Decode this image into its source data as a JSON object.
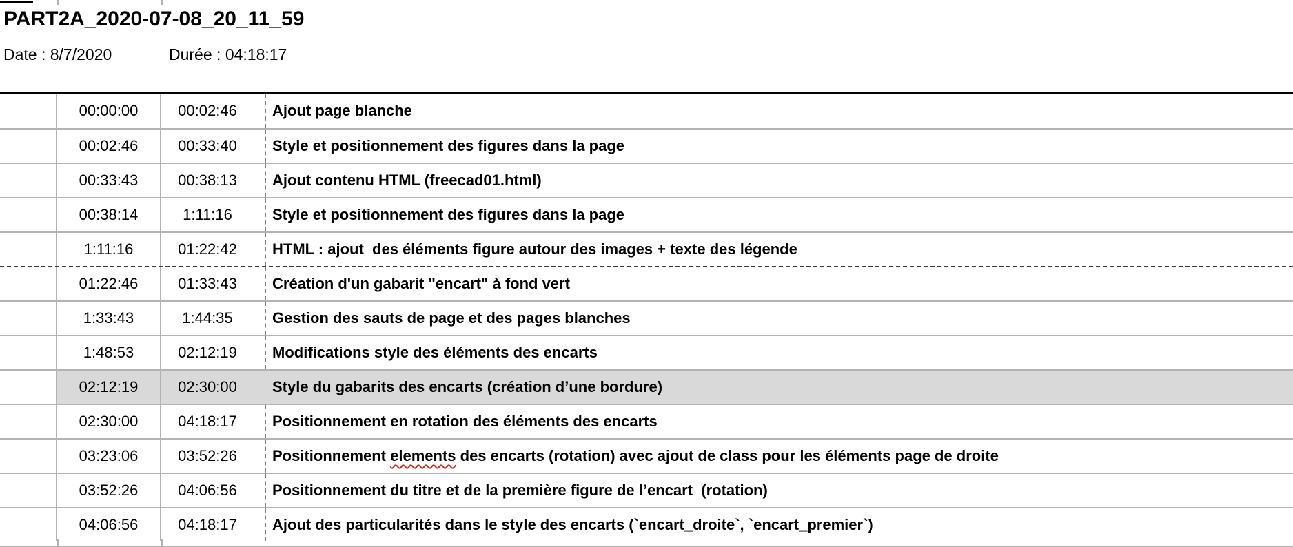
{
  "header": {
    "title": "PART2A_2020-07-08_20_11_59",
    "date": "Date : 8/7/2020",
    "duration": "Durée : 04:18:17"
  },
  "table": {
    "rows": [
      {
        "start": "00:00:00",
        "end": "00:02:46",
        "desc": "Ajout page blanche"
      },
      {
        "start": "00:02:46",
        "end": "00:33:40",
        "desc": "Style et positionnement des figures dans la page"
      },
      {
        "start": "00:33:43",
        "end": "00:38:13",
        "desc": "Ajout contenu HTML (freecad01.html)"
      },
      {
        "start": "00:38:14",
        "end": "1:11:16",
        "desc": "Style et positionnement des figures dans la page"
      },
      {
        "start": "1:11:16",
        "end": "01:22:42",
        "desc": "HTML : ajout  des éléments figure autour des images + texte des légende"
      },
      {
        "start": "01:22:46",
        "end": "01:33:43",
        "desc": "Création d'un gabarit \"encart\" à fond vert",
        "page_break_before": true
      },
      {
        "start": "1:33:43",
        "end": "1:44:35",
        "desc": "Gestion des sauts de page et des pages blanches"
      },
      {
        "start": "1:48:53",
        "end": "02:12:19",
        "desc": "Modifications style des éléments des encarts"
      },
      {
        "start": "02:12:19",
        "end": "02:30:00",
        "desc": "Style du gabarits des encarts (création d’une bordure)",
        "highlighted": true
      },
      {
        "start": "02:30:00",
        "end": "04:18:17",
        "desc": "Positionnement en rotation des éléments des encarts"
      },
      {
        "start": "03:23:06",
        "end": "03:52:26",
        "desc": "Positionnement elements des encarts (rotation) avec ajout de class pour les éléments page de droite",
        "spellcheck_word": "elements"
      },
      {
        "start": "03:52:26",
        "end": "04:06:56",
        "desc": "Positionnement du titre et de la première figure de l’encart  (rotation)"
      },
      {
        "start": "04:06:56",
        "end": "04:18:17",
        "desc": "Ajout des particularités dans le style des encarts (`encart_droite`, `encart_premier`)"
      }
    ]
  },
  "colors": {
    "highlight_bg": "#d9d9d9",
    "row_border": "#b3b3b3",
    "dashed_column_border": "#7f7f7f",
    "page_break_dash": "#3c3c3c",
    "spellcheck_underline": "#cc2a1e"
  }
}
